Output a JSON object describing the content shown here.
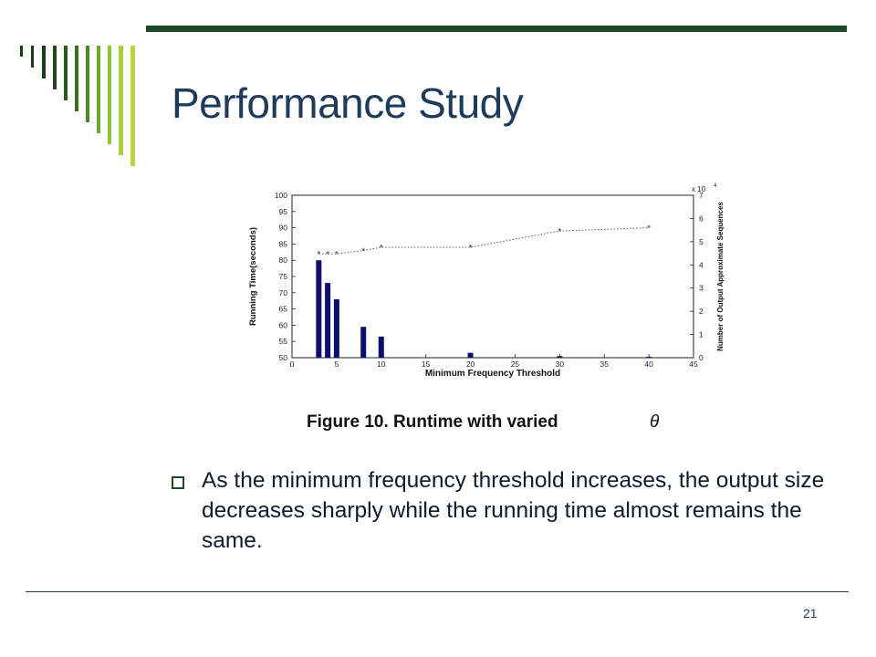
{
  "slide": {
    "title": "Performance Study",
    "body": "As the minimum frequency threshold increases, the output size decreases sharply while the running time almost remains the same.",
    "page_number": "21",
    "accent_color": "#1f4a2a",
    "title_color": "#1e3c5a"
  },
  "chart_data": {
    "type": "bar",
    "caption": "Figure 10. Runtime with varied",
    "caption_symbol": "θ",
    "xlabel": "Minimum Frequency Threshold",
    "ylabel": "Running Time(seconds)",
    "y2label": "Number of Output Approximate Sequences",
    "y2_multiplier": "x 10",
    "y2_exponent": "4",
    "xlim": [
      0,
      45
    ],
    "ylim": [
      50,
      100
    ],
    "y2lim": [
      0,
      7
    ],
    "xticks": [
      0,
      5,
      10,
      15,
      20,
      25,
      30,
      35,
      40,
      45
    ],
    "yticks": [
      50,
      55,
      60,
      65,
      70,
      75,
      80,
      85,
      90,
      95,
      100
    ],
    "y2ticks": [
      0,
      1,
      2,
      3,
      4,
      5,
      6,
      7
    ],
    "bars": {
      "x": [
        3,
        4,
        5,
        8,
        10,
        20,
        30,
        40
      ],
      "values": [
        80,
        73,
        68,
        59.5,
        56.5,
        51.5,
        50.5,
        50.3
      ],
      "color": "#0b0f6e"
    },
    "line": {
      "x": [
        3,
        4,
        5,
        8,
        10,
        20,
        30,
        40
      ],
      "values": [
        82,
        82,
        82,
        83,
        84,
        84,
        89,
        90
      ],
      "color": "#555555"
    }
  }
}
